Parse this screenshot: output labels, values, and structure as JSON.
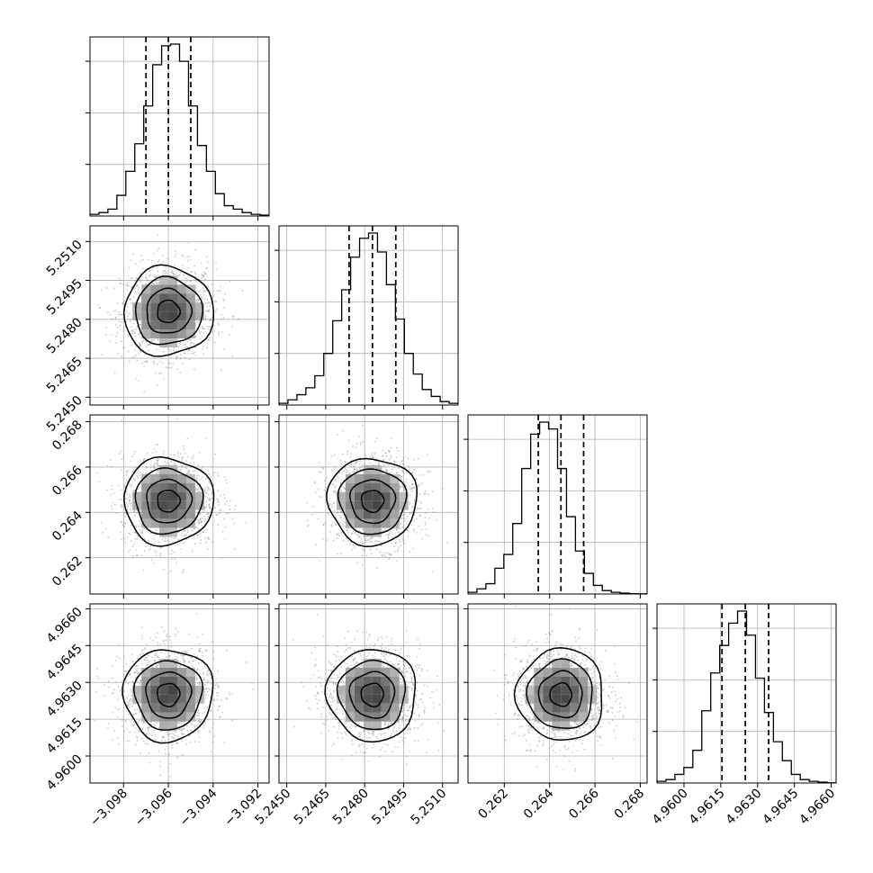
{
  "colors": {
    "hist": "#000000",
    "grid": "#b0b0b0",
    "density": "#000000",
    "points": "#8a8a8a"
  },
  "chart_data": {
    "type": "corner",
    "grid": true,
    "parameters": [
      {
        "range": [
          -3.0995,
          -3.0915
        ],
        "ticks": [
          -3.098,
          -3.096,
          -3.094,
          -3.092
        ],
        "tick_labels": [
          "−3.098",
          "−3.096",
          "−3.094",
          "−3.092"
        ],
        "mean": -3.096,
        "sigma": 0.001,
        "quantiles": [
          -3.097,
          -3.096,
          -3.095
        ]
      },
      {
        "range": [
          5.2447,
          5.2516
        ],
        "ticks": [
          5.245,
          5.2465,
          5.248,
          5.2495,
          5.251
        ],
        "tick_labels": [
          "5.2450",
          "5.2465",
          "5.2480",
          "5.2495",
          "5.2510"
        ],
        "mean": 5.2483,
        "sigma": 0.00086,
        "quantiles": [
          5.2474,
          5.2483,
          5.2492
        ]
      },
      {
        "range": [
          0.2604,
          0.2683
        ],
        "ticks": [
          0.262,
          0.264,
          0.266,
          0.268
        ],
        "tick_labels": [
          "0.262",
          "0.264",
          "0.266",
          "0.268"
        ],
        "mean": 0.2645,
        "sigma": 0.00096,
        "quantiles": [
          0.2635,
          0.2645,
          0.2655
        ]
      },
      {
        "range": [
          4.9589,
          4.9662
        ],
        "ticks": [
          4.96,
          4.9615,
          4.963,
          4.9645,
          4.966
        ],
        "tick_labels": [
          "4.9600",
          "4.9615",
          "4.9630",
          "4.9645",
          "4.9660"
        ],
        "mean": 4.9625,
        "sigma": 0.00094,
        "quantiles": [
          4.96155,
          4.9625,
          4.96345
        ]
      }
    ],
    "histograms": [
      {
        "values": [
          0.01,
          0.02,
          0.04,
          0.12,
          0.26,
          0.42,
          0.64,
          0.88,
          0.99,
          1.0,
          0.9,
          0.64,
          0.41,
          0.26,
          0.13,
          0.06,
          0.04,
          0.02,
          0.01,
          0.005
        ]
      },
      {
        "values": [
          0.01,
          0.03,
          0.06,
          0.1,
          0.17,
          0.3,
          0.49,
          0.67,
          0.86,
          0.97,
          1.0,
          0.89,
          0.7,
          0.5,
          0.3,
          0.18,
          0.09,
          0.05,
          0.02,
          0.01
        ]
      },
      {
        "values": [
          0.01,
          0.03,
          0.06,
          0.15,
          0.23,
          0.41,
          0.73,
          0.93,
          1.0,
          0.96,
          0.73,
          0.45,
          0.25,
          0.12,
          0.05,
          0.02,
          0.01,
          0.005,
          0.002,
          0.001
        ]
      },
      {
        "values": [
          0.01,
          0.02,
          0.05,
          0.09,
          0.19,
          0.42,
          0.64,
          0.8,
          0.93,
          1.0,
          0.86,
          0.61,
          0.41,
          0.24,
          0.13,
          0.05,
          0.02,
          0.01,
          0.005,
          0.001
        ]
      }
    ],
    "correlations": {
      "1,0": 0.03,
      "2,0": 0.02,
      "2,1": -0.03,
      "3,0": 0.04,
      "3,1": -0.05,
      "3,2": -0.04
    },
    "contour_levels_sigma": [
      0.5,
      1.0,
      1.5,
      2.0
    ]
  }
}
